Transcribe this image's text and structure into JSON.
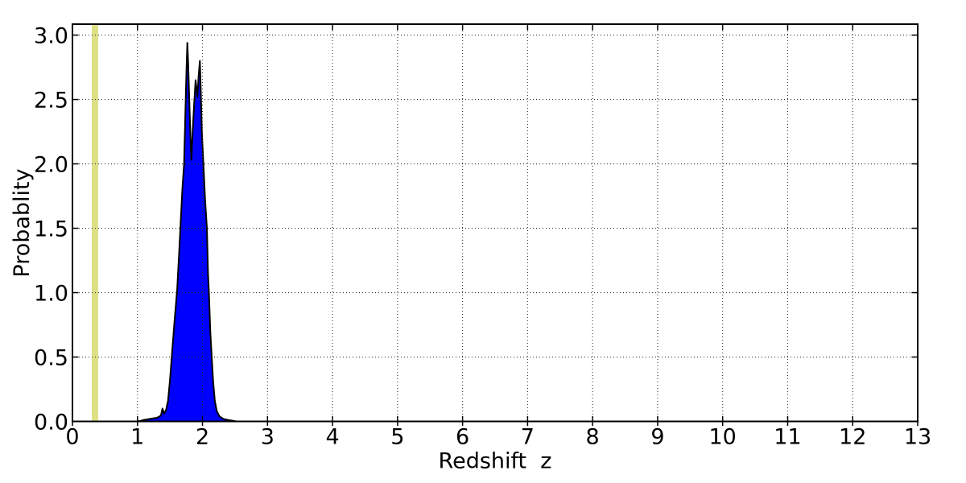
{
  "chart_data": {
    "type": "area",
    "title": "",
    "xlabel": "Redshift  z",
    "ylabel": "Probablity",
    "xlim": [
      0,
      13
    ],
    "ylim": [
      0,
      3.085
    ],
    "xticks": [
      0,
      1,
      2,
      3,
      4,
      5,
      6,
      7,
      8,
      9,
      10,
      11,
      12,
      13
    ],
    "xtick_labels": [
      "0",
      "1",
      "2",
      "3",
      "4",
      "5",
      "6",
      "7",
      "8",
      "9",
      "10",
      "11",
      "12",
      "13"
    ],
    "ytick_values": [
      0,
      0.5,
      1.0,
      1.5,
      2.0,
      2.5,
      3.0
    ],
    "ytick_labels": [
      "0.0",
      "0.5",
      "1.0",
      "1.5",
      "2.0",
      "2.5",
      "3.0"
    ],
    "grid": {
      "style": "dotted",
      "color": "#333333",
      "major_x": true,
      "major_y": true
    },
    "legend": "none",
    "colors": {
      "fill": "#0000ff",
      "edge": "#000000",
      "band": "#dee084",
      "spine": "#000000",
      "background": "#ffffff"
    },
    "band": {
      "name": "reference-redshift-band",
      "x0": 0.297,
      "x1": 0.396
    },
    "series": [
      {
        "name": "redshift-probability-density",
        "fill_color": "#0000ff",
        "edge_color": "#000000",
        "points": [
          [
            1.0,
            0.0
          ],
          [
            1.05,
            0.005
          ],
          [
            1.1,
            0.012
          ],
          [
            1.2,
            0.02
          ],
          [
            1.3,
            0.028
          ],
          [
            1.36,
            0.045
          ],
          [
            1.385,
            0.1
          ],
          [
            1.41,
            0.06
          ],
          [
            1.44,
            0.09
          ],
          [
            1.47,
            0.16
          ],
          [
            1.5,
            0.32
          ],
          [
            1.53,
            0.52
          ],
          [
            1.57,
            0.78
          ],
          [
            1.61,
            1.02
          ],
          [
            1.64,
            1.3
          ],
          [
            1.66,
            1.5
          ],
          [
            1.69,
            1.8
          ],
          [
            1.717,
            2.0
          ],
          [
            1.742,
            2.5
          ],
          [
            1.755,
            2.75
          ],
          [
            1.767,
            2.94
          ],
          [
            1.78,
            2.78
          ],
          [
            1.8,
            2.45
          ],
          [
            1.815,
            2.2
          ],
          [
            1.829,
            2.03
          ],
          [
            1.845,
            2.22
          ],
          [
            1.87,
            2.45
          ],
          [
            1.894,
            2.65
          ],
          [
            1.91,
            2.58
          ],
          [
            1.923,
            2.52
          ],
          [
            1.94,
            2.68
          ],
          [
            1.96,
            2.8
          ],
          [
            1.975,
            2.55
          ],
          [
            1.99,
            2.25
          ],
          [
            2.014,
            2.0
          ],
          [
            2.04,
            1.72
          ],
          [
            2.068,
            1.5
          ],
          [
            2.085,
            1.15
          ],
          [
            2.099,
            1.0
          ],
          [
            2.12,
            0.7
          ],
          [
            2.142,
            0.5
          ],
          [
            2.165,
            0.3
          ],
          [
            2.19,
            0.16
          ],
          [
            2.22,
            0.08
          ],
          [
            2.26,
            0.04
          ],
          [
            2.32,
            0.02
          ],
          [
            2.4,
            0.01
          ],
          [
            2.48,
            0.004
          ],
          [
            2.52,
            0.0
          ]
        ]
      }
    ]
  }
}
